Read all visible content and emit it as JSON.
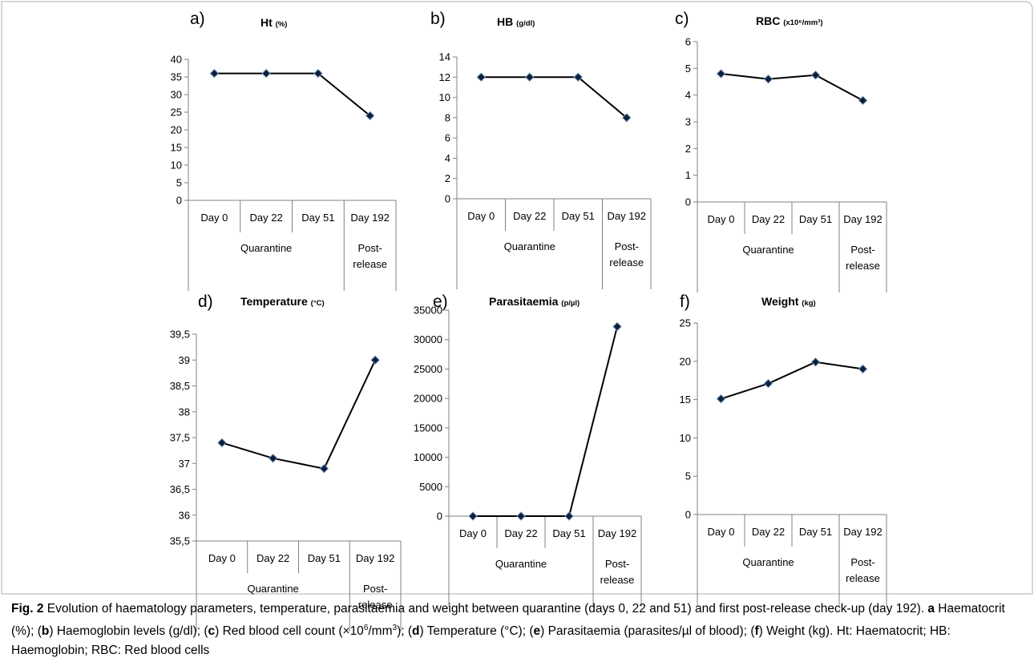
{
  "caption": {
    "fig_label": "Fig. 2",
    "text_parts": [
      {
        "t": " Evolution of haematology parameters, temperature, parasitaemia and weight between quarantine (days 0, 22 and 51) and first post-release check-up (day 192). ",
        "b": false
      },
      {
        "t": "a",
        "b": true
      },
      {
        "t": " Haematocrit (%); (",
        "b": false
      },
      {
        "t": "b",
        "b": true
      },
      {
        "t": ") Haemoglobin levels (g/dl); (",
        "b": false
      },
      {
        "t": "c",
        "b": true
      },
      {
        "t": ") Red blood cell count (×10",
        "b": false
      },
      {
        "t": "6",
        "b": false,
        "sup": true
      },
      {
        "t": "/mm",
        "b": false
      },
      {
        "t": "3",
        "b": false,
        "sup": true
      },
      {
        "t": "); (",
        "b": false
      },
      {
        "t": "d",
        "b": true
      },
      {
        "t": ") Temperature (°C); (",
        "b": false
      },
      {
        "t": "e",
        "b": true
      },
      {
        "t": ") Parasitaemia (parasites/µl of blood); (",
        "b": false
      },
      {
        "t": "f",
        "b": true
      },
      {
        "t": ") Weight (kg). Ht: Haematocrit; HB: Haemoglobin; RBC: Red blood cells",
        "b": false
      }
    ]
  },
  "colors": {
    "line": "#000000",
    "marker_fill": "#0d1f3c",
    "marker_stroke": "#6f8fb3",
    "axis": "#808080"
  },
  "chart_data": [
    {
      "type": "line",
      "panel_letter": "a)",
      "title": "Ht",
      "title_unit": "(%)",
      "categories": [
        "Day 0",
        "Day 22",
        "Day 51",
        "Day 192"
      ],
      "groups": [
        {
          "label": "Quarantine",
          "span": 3
        },
        {
          "label": "Post-\nrelease",
          "span": 1
        }
      ],
      "values": [
        36,
        36,
        36,
        24
      ],
      "ylim": [
        0,
        40
      ],
      "yticks": [
        "0",
        "5",
        "10",
        "15",
        "20",
        "25",
        "30",
        "35",
        "40"
      ]
    },
    {
      "type": "line",
      "panel_letter": "b)",
      "title": "HB",
      "title_unit": "(g/dl)",
      "categories": [
        "Day 0",
        "Day 22",
        "Day 51",
        "Day 192"
      ],
      "groups": [
        {
          "label": "Quarantine",
          "span": 3
        },
        {
          "label": "Post-\nrelease",
          "span": 1
        }
      ],
      "values": [
        12,
        12,
        12,
        8
      ],
      "ylim": [
        0,
        14
      ],
      "yticks": [
        "0",
        "2",
        "4",
        "6",
        "8",
        "10",
        "12",
        "14"
      ]
    },
    {
      "type": "line",
      "panel_letter": "c)",
      "title": "RBC",
      "title_unit": "(x10⁶/mm³)",
      "categories": [
        "Day 0",
        "Day 22",
        "Day 51",
        "Day 192"
      ],
      "groups": [
        {
          "label": "Quarantine",
          "span": 3
        },
        {
          "label": "Post-\nrelease",
          "span": 1
        }
      ],
      "values": [
        4.8,
        4.6,
        4.75,
        3.8
      ],
      "ylim": [
        0,
        6
      ],
      "yticks": [
        "0",
        "1",
        "2",
        "3",
        "4",
        "5",
        "6"
      ]
    },
    {
      "type": "line",
      "panel_letter": "d)",
      "title": "Temperature",
      "title_unit": "(°C)",
      "categories": [
        "Day 0",
        "Day 22",
        "Day 51",
        "Day 192"
      ],
      "groups": [
        {
          "label": "Quarantine",
          "span": 3
        },
        {
          "label": "Post-\nrelease",
          "span": 1
        }
      ],
      "values": [
        37.4,
        37.1,
        36.9,
        39
      ],
      "ylim": [
        35.5,
        39.5
      ],
      "yticks": [
        "35,5",
        "36",
        "36,5",
        "37",
        "37,5",
        "38",
        "38,5",
        "39",
        "39,5"
      ]
    },
    {
      "type": "line",
      "panel_letter": "e)",
      "title": "Parasitaemia",
      "title_unit": "(p/µl)",
      "categories": [
        "Day 0",
        "Day 22",
        "Day 51",
        "Day 192"
      ],
      "groups": [
        {
          "label": "Quarantine",
          "span": 3
        },
        {
          "label": "Post-\nrelease",
          "span": 1
        }
      ],
      "values": [
        0,
        0,
        0,
        32200
      ],
      "ylim": [
        0,
        35000
      ],
      "yticks": [
        "0",
        "5000",
        "10000",
        "15000",
        "20000",
        "25000",
        "30000",
        "35000"
      ]
    },
    {
      "type": "line",
      "panel_letter": "f)",
      "title": "Weight",
      "title_unit": "(kg)",
      "categories": [
        "Day 0",
        "Day 22",
        "Day 51",
        "Day 192"
      ],
      "groups": [
        {
          "label": "Quarantine",
          "span": 3
        },
        {
          "label": "Post-\nrelease",
          "span": 1
        }
      ],
      "values": [
        15.1,
        17.1,
        19.9,
        19
      ],
      "ylim": [
        0,
        25
      ],
      "yticks": [
        "0",
        "5",
        "10",
        "15",
        "20",
        "25"
      ]
    }
  ]
}
